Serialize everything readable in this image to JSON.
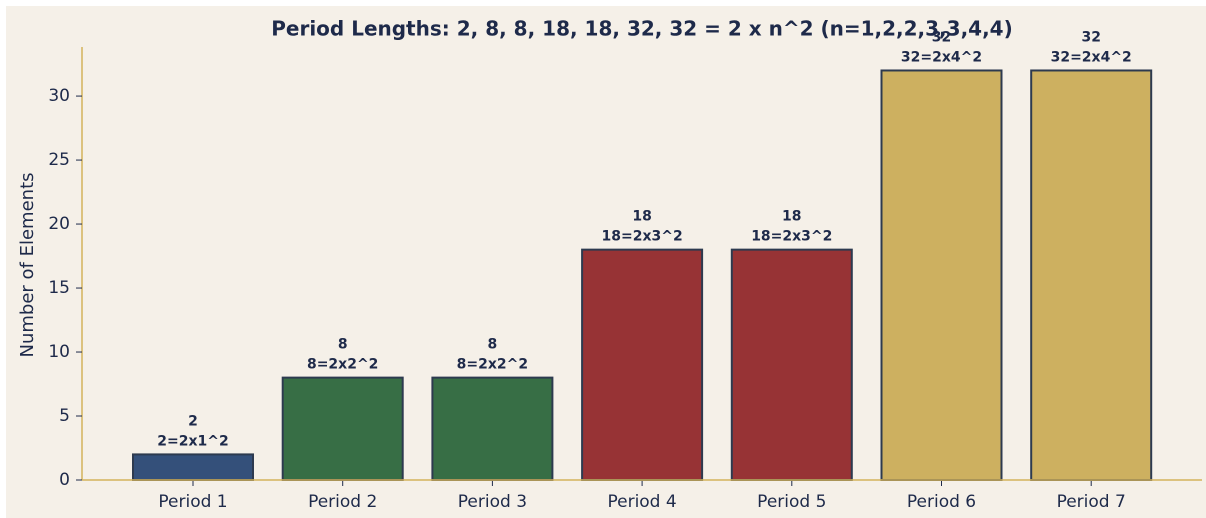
{
  "chart_data": {
    "type": "bar",
    "title": "Period Lengths: 2, 8, 8, 18, 18, 32, 32 = 2 x n^2 (n=1,2,2,3,3,4,4)",
    "y_label": "Number of Elements",
    "categories": [
      "Period 1",
      "Period 2",
      "Period 3",
      "Period 4",
      "Period 5",
      "Period 6",
      "Period 7"
    ],
    "values": [
      2,
      8,
      8,
      18,
      18,
      32,
      32
    ],
    "annotations": [
      "2=2x1^2",
      "8=2x2^2",
      "8=2x2^2",
      "18=2x3^2",
      "18=2x3^2",
      "32=2x4^2",
      "32=2x4^2"
    ],
    "colors": [
      "#34507a",
      "#376e45",
      "#376e45",
      "#973335",
      "#973335",
      "#cdb060",
      "#cdb060"
    ],
    "ylim": [
      0,
      33.6
    ],
    "yticks": [
      0,
      5,
      10,
      15,
      20,
      25,
      30
    ],
    "grid": false
  }
}
